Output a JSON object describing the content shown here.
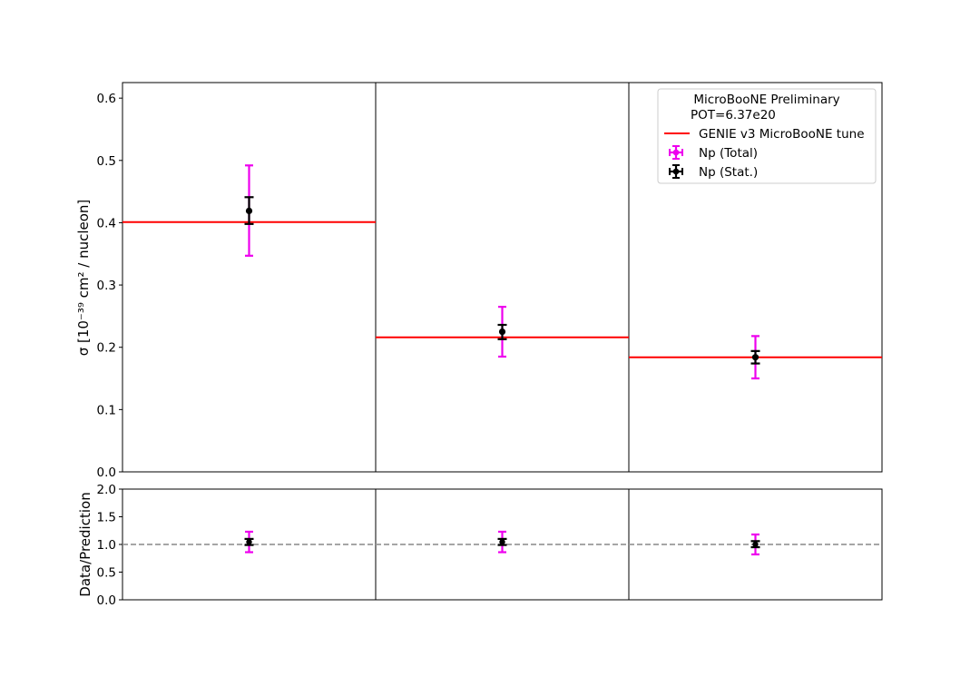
{
  "chart_data": [
    {
      "type": "scatter",
      "panel": "main",
      "title": "",
      "xlabel": "",
      "ylabel": "σ [10⁻³⁹ cm² / nucleon]",
      "ylim": [
        0,
        0.625
      ],
      "yticks": [
        0.0,
        0.1,
        0.2,
        0.3,
        0.4,
        0.5,
        0.6
      ],
      "ytick_labels": [
        "0.0",
        "0.1",
        "0.2",
        "0.3",
        "0.4",
        "0.5",
        "0.6"
      ],
      "n_bins": 3,
      "grid": false,
      "legend_placement": "top-right",
      "legend": {
        "header_line1": "MicroBooNE Preliminary",
        "header_line2": "POT=6.37e20",
        "items": [
          {
            "label": "GENIE v3 MicroBooNE tune",
            "kind": "line",
            "color": "#ff0000"
          },
          {
            "label": "Np (Total)",
            "kind": "errorbar",
            "color": "#ee00ee"
          },
          {
            "label": "Np (Stat.)",
            "kind": "errorbar",
            "color": "#000000"
          }
        ]
      },
      "prediction": {
        "name": "GENIE v3 MicroBooNE tune",
        "color": "#ff0000",
        "values": [
          0.401,
          0.216,
          0.184
        ]
      },
      "series": [
        {
          "name": "Np (Total)",
          "color": "#ee00ee",
          "values": [
            0.419,
            0.225,
            0.184
          ],
          "lower": [
            0.347,
            0.185,
            0.15
          ],
          "upper": [
            0.492,
            0.265,
            0.218
          ]
        },
        {
          "name": "Np (Stat.)",
          "color": "#000000",
          "values": [
            0.419,
            0.225,
            0.184
          ],
          "lower": [
            0.398,
            0.213,
            0.174
          ],
          "upper": [
            0.441,
            0.236,
            0.194
          ]
        }
      ]
    },
    {
      "type": "scatter",
      "panel": "ratio",
      "title": "",
      "xlabel": "",
      "ylabel": "Data/Prediction",
      "ylim": [
        0,
        2.0
      ],
      "yticks": [
        0.0,
        0.5,
        1.0,
        1.5,
        2.0
      ],
      "ytick_labels": [
        "0.0",
        "0.5",
        "1.0",
        "1.5",
        "2.0"
      ],
      "reference_line": 1.0,
      "reference_color": "#999999",
      "grid": false,
      "series": [
        {
          "name": "Np (Total)",
          "color": "#ee00ee",
          "values": [
            1.045,
            1.045,
            1.0
          ],
          "lower": [
            0.86,
            0.86,
            0.82
          ],
          "upper": [
            1.23,
            1.23,
            1.18
          ]
        },
        {
          "name": "Np (Stat.)",
          "color": "#000000",
          "values": [
            1.045,
            1.045,
            1.0
          ],
          "lower": [
            0.99,
            0.99,
            0.95
          ],
          "upper": [
            1.1,
            1.1,
            1.06
          ]
        }
      ]
    }
  ]
}
